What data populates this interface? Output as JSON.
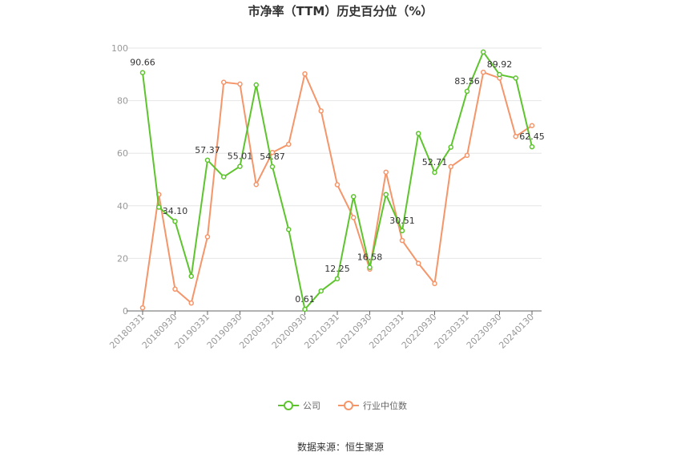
{
  "chart_data": {
    "type": "line",
    "title": "市净率（TTM）历史百分位（%）",
    "xlabel": "",
    "ylabel": "",
    "ylim": [
      0,
      100
    ],
    "yticks": [
      0,
      20,
      40,
      60,
      80,
      100
    ],
    "grid": true,
    "legend_position": "bottom",
    "x": [
      "20180331",
      "20180630",
      "20180930",
      "20181231",
      "20190331",
      "20190630",
      "20190930",
      "20191231",
      "20200331",
      "20200630",
      "20200930",
      "20201231",
      "20210331",
      "20210630",
      "20210930",
      "20211231",
      "20220331",
      "20220630",
      "20220930",
      "20221231",
      "20230331",
      "20230630",
      "20230930",
      "20231231",
      "20240130"
    ],
    "x_tick_labels": [
      "20180331",
      "20180930",
      "20190331",
      "20190930",
      "20200331",
      "20200930",
      "20210331",
      "20210930",
      "20220331",
      "20220930",
      "20230331",
      "20230930",
      "20240130"
    ],
    "series": [
      {
        "name": "公司",
        "color": "#5ec42e",
        "values": [
          90.66,
          39.5,
          34.1,
          13.2,
          57.37,
          51.0,
          55.01,
          86.0,
          54.87,
          31.0,
          0.61,
          7.6,
          12.25,
          43.5,
          16.58,
          44.3,
          30.51,
          67.5,
          52.71,
          62.3,
          83.56,
          98.5,
          89.92,
          88.6,
          62.45
        ],
        "labels": {
          "0": "90.66",
          "2": "34.10",
          "4": "57.37",
          "6": "55.01",
          "8": "54.87",
          "10": "0.61",
          "12": "12.25",
          "14": "16.58",
          "16": "30.51",
          "18": "52.71",
          "20": "83.56",
          "22": "89.92",
          "24": "62.45"
        }
      },
      {
        "name": "行业中位数",
        "color": "#f5956a",
        "values": [
          1.2,
          44.3,
          8.3,
          3.0,
          28.2,
          87.0,
          86.3,
          48.1,
          60.3,
          63.4,
          90.2,
          76.1,
          48.0,
          35.5,
          15.9,
          52.8,
          26.8,
          18.1,
          10.4,
          54.9,
          59.2,
          90.8,
          88.6,
          66.4,
          70.5
        ]
      }
    ]
  },
  "source_text": "数据来源：恒生聚源"
}
